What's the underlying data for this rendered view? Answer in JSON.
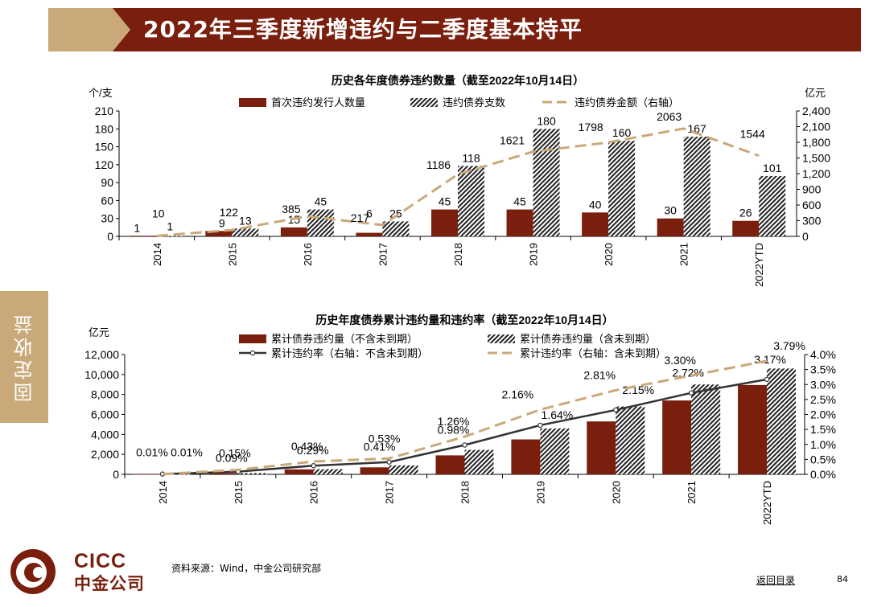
{
  "header": {
    "title": "2022年三季度新增违约与二季度基本持平"
  },
  "sidebar": {
    "label": "固定收益"
  },
  "colors": {
    "brand_red": "#7a1f0d",
    "brand_tan": "#c9a97a",
    "dash_line": "#c9a97a"
  },
  "chart_data": [
    {
      "type": "bar",
      "title": "历史各年度债券违约数量（截至2022年10月14日）",
      "ylabel": "个/支",
      "y2label": "亿元",
      "ylim": [
        0,
        210
      ],
      "y2lim": [
        0,
        2400
      ],
      "yticks": [
        "0",
        "30",
        "60",
        "90",
        "120",
        "150",
        "180",
        "210"
      ],
      "y2ticks": [
        "0",
        "300",
        "600",
        "900",
        "1,200",
        "1,500",
        "1,800",
        "2,100",
        "2,400"
      ],
      "categories": [
        "2014",
        "2015",
        "2016",
        "2017",
        "2018",
        "2019",
        "2020",
        "2021",
        "2022YTD"
      ],
      "series": [
        {
          "name": "首次违约发行人数量",
          "kind": "bar-solid",
          "values": [
            1,
            9,
            15,
            6,
            45,
            45,
            40,
            30,
            26
          ],
          "labels": [
            "1",
            "9",
            "15",
            "6",
            "45",
            "45",
            "40",
            "30",
            "26"
          ]
        },
        {
          "name": "违约债券支数",
          "kind": "bar-hatch",
          "values": [
            1,
            13,
            45,
            25,
            118,
            180,
            160,
            167,
            101
          ],
          "labels": [
            "1",
            "13",
            "45",
            "25",
            "118",
            "180",
            "160",
            "167",
            "101"
          ]
        },
        {
          "name": "违约债券金额（右轴）",
          "kind": "line-dash",
          "axis": "right",
          "values": [
            10,
            122,
            385,
            217,
            1186,
            1621,
            1798,
            2063,
            1544
          ],
          "labels": [
            "10",
            "122",
            "385",
            "217",
            "1186",
            "1621",
            "1798",
            "2063",
            "1544"
          ]
        }
      ]
    },
    {
      "type": "bar",
      "title": "历史年度债券累计违约量和违约率（截至2022年10月14日）",
      "ylabel": "亿元",
      "ylim": [
        0,
        12000
      ],
      "y2lim": [
        0,
        4.0
      ],
      "yticks": [
        "0",
        "2,000",
        "4,000",
        "6,000",
        "8,000",
        "10,000",
        "12,000"
      ],
      "y2ticks": [
        "0.0%",
        "0.5%",
        "1.0%",
        "1.5%",
        "2.0%",
        "2.5%",
        "3.0%",
        "3.5%",
        "4.0%"
      ],
      "categories": [
        "2014",
        "2015",
        "2016",
        "2017",
        "2018",
        "2019",
        "2020",
        "2021",
        "2022YTD"
      ],
      "series": [
        {
          "name": "累计债券违约量（不含未到期）",
          "kind": "bar-solid",
          "values": [
            10,
            130,
            500,
            700,
            1900,
            3500,
            5300,
            7400,
            8950
          ]
        },
        {
          "name": "累计债券违约量（含未到期）",
          "kind": "bar-hatch",
          "values": [
            10,
            135,
            520,
            900,
            2450,
            4600,
            6800,
            9000,
            10600
          ]
        },
        {
          "name": "累计违约率（右轴：不含未到期）",
          "kind": "line-solid",
          "axis": "right",
          "values": [
            0.01,
            0.09,
            0.29,
            0.41,
            0.98,
            1.64,
            2.15,
            2.72,
            3.17
          ],
          "labels": [
            "0.01%",
            "0.09%",
            "0.29%",
            "0.41%",
            "0.98%",
            "1.64%",
            "2.15%",
            "2.72%",
            "3.17%"
          ]
        },
        {
          "name": "累计违约率（右轴：含未到期）",
          "kind": "line-dash",
          "axis": "right",
          "values": [
            0.01,
            0.15,
            0.43,
            0.53,
            1.26,
            2.16,
            2.81,
            3.3,
            3.79
          ],
          "labels": [
            "0.01%",
            "0.15%",
            "0.43%",
            "0.53%",
            "1.26%",
            "2.16%",
            "2.81%",
            "3.30%",
            "3.79%"
          ]
        }
      ]
    }
  ],
  "footer": {
    "logo_en": "CICC",
    "logo_cn": "中金公司",
    "source": "资料来源：Wind，中金公司研究部",
    "back_link": "返回目录",
    "page_number": "84"
  }
}
